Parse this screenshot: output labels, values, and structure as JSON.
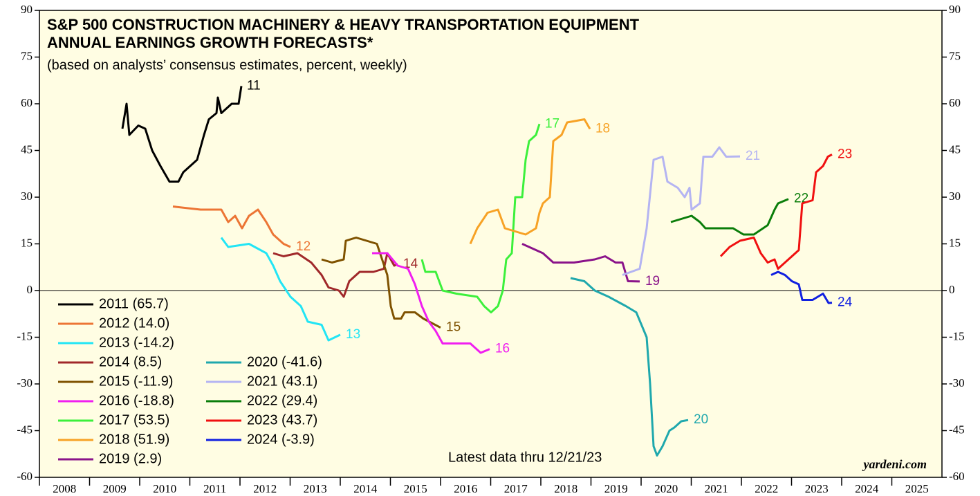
{
  "chart_data": {
    "type": "line",
    "title": "S&P 500 CONSTRUCTION MACHINERY & HEAVY TRANSPORTATION EQUIPMENT",
    "title_line2": "ANNUAL EARNINGS GROWTH FORECASTS*",
    "subtitle": "(based on analysts’ consensus estimates, percent, weekly)",
    "annotation": "Latest data thru 12/21/23",
    "source": "yardeni.com",
    "xlim": [
      2008,
      2026
    ],
    "xticks": [
      2008,
      2009,
      2010,
      2011,
      2012,
      2013,
      2014,
      2015,
      2016,
      2017,
      2018,
      2019,
      2020,
      2021,
      2022,
      2023,
      2024,
      2025
    ],
    "ylim": [
      -60,
      90
    ],
    "yticks": [
      -60,
      -45,
      -30,
      -15,
      0,
      15,
      30,
      45,
      60,
      75,
      90
    ],
    "series": [
      {
        "name": "2011 (65.7)",
        "label": "11",
        "color": "#000000",
        "x": [
          2009.655,
          2009.738,
          2009.793,
          2009.972,
          2010.11,
          2010.248,
          2010.414,
          2010.593,
          2010.772,
          2010.869,
          2011.007,
          2011.145,
          2011.283,
          2011.379,
          2011.531,
          2011.559,
          2011.628,
          2011.834,
          2011.972,
          2012.028
        ],
        "values": [
          52,
          60,
          50,
          53,
          52,
          45,
          40,
          35,
          35,
          38,
          40,
          42,
          50,
          55,
          57,
          62,
          57,
          60,
          60,
          65.7
        ]
      },
      {
        "name": "2012 (14.0)",
        "label": "12",
        "color": "#ec7535",
        "x": [
          2010.662,
          2011.214,
          2011.628,
          2011.766,
          2011.903,
          2012.041,
          2012.179,
          2012.359,
          2012.524,
          2012.662,
          2012.869,
          2013.007
        ],
        "values": [
          27,
          26,
          26,
          22,
          24,
          20,
          24,
          26,
          22,
          18,
          15,
          14.0
        ]
      },
      {
        "name": "2013 (-14.2)",
        "label": "13",
        "color": "#22e5f5",
        "x": [
          2011.628,
          2011.766,
          2012.179,
          2012.524,
          2012.662,
          2012.8,
          2013.007,
          2013.214,
          2013.352,
          2013.628,
          2013.766,
          2014.0
        ],
        "values": [
          17,
          14,
          15,
          12,
          8,
          3,
          -2,
          -5,
          -10,
          -11,
          -16,
          -14.2
        ]
      },
      {
        "name": "2014 (8.5)",
        "label": "14",
        "color": "#a0282a",
        "x": [
          2012.662,
          2012.869,
          2013.145,
          2013.421,
          2013.628,
          2013.766,
          2013.972,
          2014.069,
          2014.179,
          2014.386,
          2014.662,
          2014.869,
          2014.938,
          2015.076,
          2015.145
        ],
        "values": [
          12,
          11,
          12,
          9,
          5,
          1,
          0,
          -2,
          3,
          6,
          6,
          7,
          12,
          8,
          8.5
        ]
      },
      {
        "name": "2015 (-11.9)",
        "label": "15",
        "color": "#7f5200",
        "x": [
          2013.628,
          2013.834,
          2014.069,
          2014.11,
          2014.317,
          2014.731,
          2014.938,
          2015.007,
          2015.076,
          2015.214,
          2015.283,
          2015.49,
          2015.655,
          2016.0
        ],
        "values": [
          10,
          9,
          10,
          16,
          17,
          15,
          5,
          -5,
          -9,
          -9,
          -7,
          -7,
          -9,
          -11.9
        ]
      },
      {
        "name": "2016 (-18.8)",
        "label": "16",
        "color": "#f01ef0",
        "x": [
          2014.634,
          2014.938,
          2015.145,
          2015.352,
          2015.49,
          2015.628,
          2015.766,
          2015.903,
          2016.041,
          2016.593,
          2016.8,
          2016.979
        ],
        "values": [
          12,
          12,
          8,
          7,
          2,
          -5,
          -10,
          -13,
          -17,
          -17,
          -20,
          -18.8
        ]
      },
      {
        "name": "2017 (53.5)",
        "label": "17",
        "color": "#3cf03c",
        "x": [
          2015.628,
          2015.697,
          2015.903,
          2016.041,
          2016.317,
          2016.731,
          2016.869,
          2017.007,
          2017.145,
          2017.241,
          2017.31,
          2017.421,
          2017.49,
          2017.628,
          2017.697,
          2017.766,
          2017.903,
          2017.972
        ],
        "values": [
          10,
          6,
          6,
          0,
          -1,
          -2,
          -5,
          -7,
          -5,
          0,
          10,
          12,
          30,
          30,
          42,
          48,
          50,
          53.5
        ]
      },
      {
        "name": "2018 (51.9)",
        "label": "18",
        "color": "#f7a225",
        "x": [
          2016.593,
          2016.731,
          2016.938,
          2017.145,
          2017.283,
          2017.49,
          2017.697,
          2017.903,
          2017.972,
          2018.041,
          2018.179,
          2018.248,
          2018.414,
          2018.524,
          2018.869,
          2018.979
        ],
        "values": [
          15,
          20,
          25,
          26,
          20,
          19,
          18,
          20,
          25,
          28,
          30,
          48,
          50,
          54,
          55,
          51.9
        ]
      },
      {
        "name": "2019 (2.9)",
        "label": "19",
        "color": "#8a138a",
        "x": [
          2017.628,
          2017.766,
          2018.041,
          2018.248,
          2018.662,
          2019.076,
          2019.283,
          2019.49,
          2019.628,
          2019.738,
          2019.972
        ],
        "values": [
          15,
          14,
          12,
          9,
          9,
          10,
          11,
          9,
          9,
          3,
          2.9
        ]
      },
      {
        "name": "2020 (-41.6)",
        "label": "20",
        "color": "#1fa8ad",
        "x": [
          2018.593,
          2018.869,
          2019.076,
          2019.352,
          2019.697,
          2019.903,
          2020.11,
          2020.179,
          2020.248,
          2020.317,
          2020.428,
          2020.566,
          2020.662,
          2020.8,
          2020.938
        ],
        "values": [
          4,
          3,
          0,
          -2,
          -5,
          -7,
          -15,
          -30,
          -50,
          -53,
          -50,
          -45,
          -44,
          -42,
          -41.6
        ]
      },
      {
        "name": "2021 (43.1)",
        "label": "21",
        "color": "#b4b4f2",
        "x": [
          2019.628,
          2019.972,
          2020.11,
          2020.248,
          2020.428,
          2020.524,
          2020.731,
          2020.869,
          2020.966,
          2021.007,
          2021.172,
          2021.241,
          2021.421,
          2021.559,
          2021.697,
          2021.972
        ],
        "values": [
          5,
          7,
          20,
          42,
          43,
          35,
          33,
          30,
          33,
          26,
          28,
          43,
          43,
          46,
          43,
          43.1
        ]
      },
      {
        "name": "2022 (29.4)",
        "label": "22",
        "color": "#0a7d0a",
        "x": [
          2020.593,
          2020.8,
          2021.007,
          2021.172,
          2021.283,
          2021.834,
          2022.041,
          2022.248,
          2022.524,
          2022.662,
          2022.731,
          2022.938
        ],
        "values": [
          22,
          23,
          24,
          22,
          20,
          20,
          18,
          18,
          21,
          26,
          28,
          29.4
        ]
      },
      {
        "name": "2023 (43.7)",
        "label": "23",
        "color": "#f01010",
        "x": [
          2021.586,
          2021.766,
          2021.972,
          2022.248,
          2022.386,
          2022.524,
          2022.662,
          2022.731,
          2022.938,
          2023.145,
          2023.214,
          2023.421,
          2023.49,
          2023.628,
          2023.724,
          2023.807
        ],
        "values": [
          11,
          14,
          16,
          17,
          12,
          9,
          10,
          7,
          10,
          13,
          28,
          29,
          38,
          40,
          43,
          43.7
        ]
      },
      {
        "name": "2024 (-3.9)",
        "label": "24",
        "color": "#1020e0",
        "x": [
          2022.593,
          2022.731,
          2022.869,
          2023.007,
          2023.145,
          2023.214,
          2023.421,
          2023.628,
          2023.738,
          2023.807
        ],
        "values": [
          5,
          6,
          5,
          3,
          2,
          -3,
          -3,
          -1,
          -4,
          -3.9
        ]
      }
    ]
  }
}
